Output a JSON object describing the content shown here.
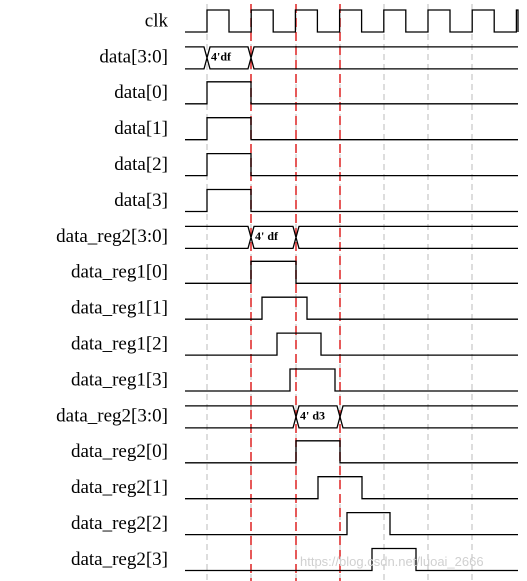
{
  "signals": [
    {
      "label": "clk"
    },
    {
      "label": "data[3:0]",
      "bus_label": "4'df"
    },
    {
      "label": "data[0]"
    },
    {
      "label": "data[1]"
    },
    {
      "label": "data[2]"
    },
    {
      "label": "data[3]"
    },
    {
      "label": "data_reg2[3:0]",
      "bus_label": "4' df"
    },
    {
      "label": "data_reg1[0]"
    },
    {
      "label": "data_reg1[1]"
    },
    {
      "label": "data_reg1[2]"
    },
    {
      "label": "data_reg1[3]"
    },
    {
      "label": "data_reg2[3:0]",
      "bus_label": "4' d3"
    },
    {
      "label": "data_reg2[0]"
    },
    {
      "label": "data_reg2[1]"
    },
    {
      "label": "data_reg2[2]"
    },
    {
      "label": "data_reg2[3]"
    }
  ],
  "watermark": "https://blog.csdn.net/luoai_2666"
}
